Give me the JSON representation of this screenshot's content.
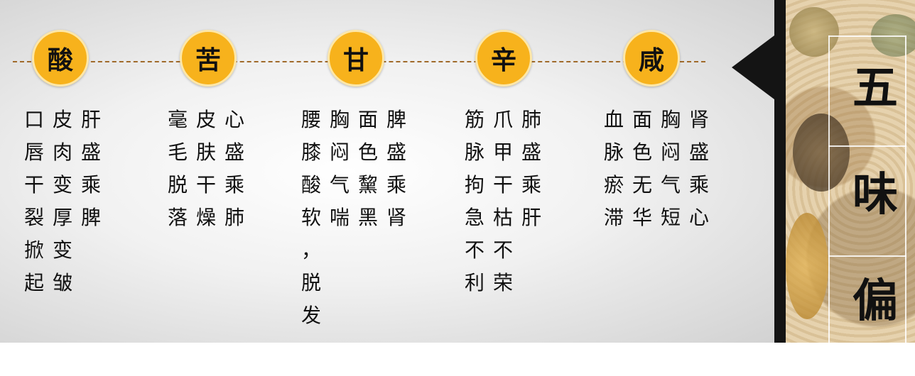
{
  "panel_title": [
    "五",
    "味",
    "偏"
  ],
  "groups": [
    {
      "header": "酸",
      "columns": [
        "肝盛乘脾",
        "皮肉变厚变皱",
        "口唇干裂掀起"
      ]
    },
    {
      "header": "苦",
      "columns": [
        "心盛乘肺",
        "皮肤干燥",
        "毫毛脱落"
      ]
    },
    {
      "header": "甘",
      "columns": [
        "脾盛乘肾",
        "面色黧黑",
        "胸闷气喘",
        "腰膝酸软，脱发"
      ]
    },
    {
      "header": "辛",
      "columns": [
        "肺盛乘肝",
        "爪甲干枯不荣",
        "筋脉拘急不利"
      ]
    },
    {
      "header": "咸",
      "columns": [
        "肾盛乘心",
        "胸闷气短",
        "面色无华",
        "血脉瘀滞"
      ]
    }
  ],
  "colors": {
    "circle_fill": "#f7b21c",
    "dash_line": "#a06a2a",
    "text": "#111111",
    "divider": "#141414"
  }
}
